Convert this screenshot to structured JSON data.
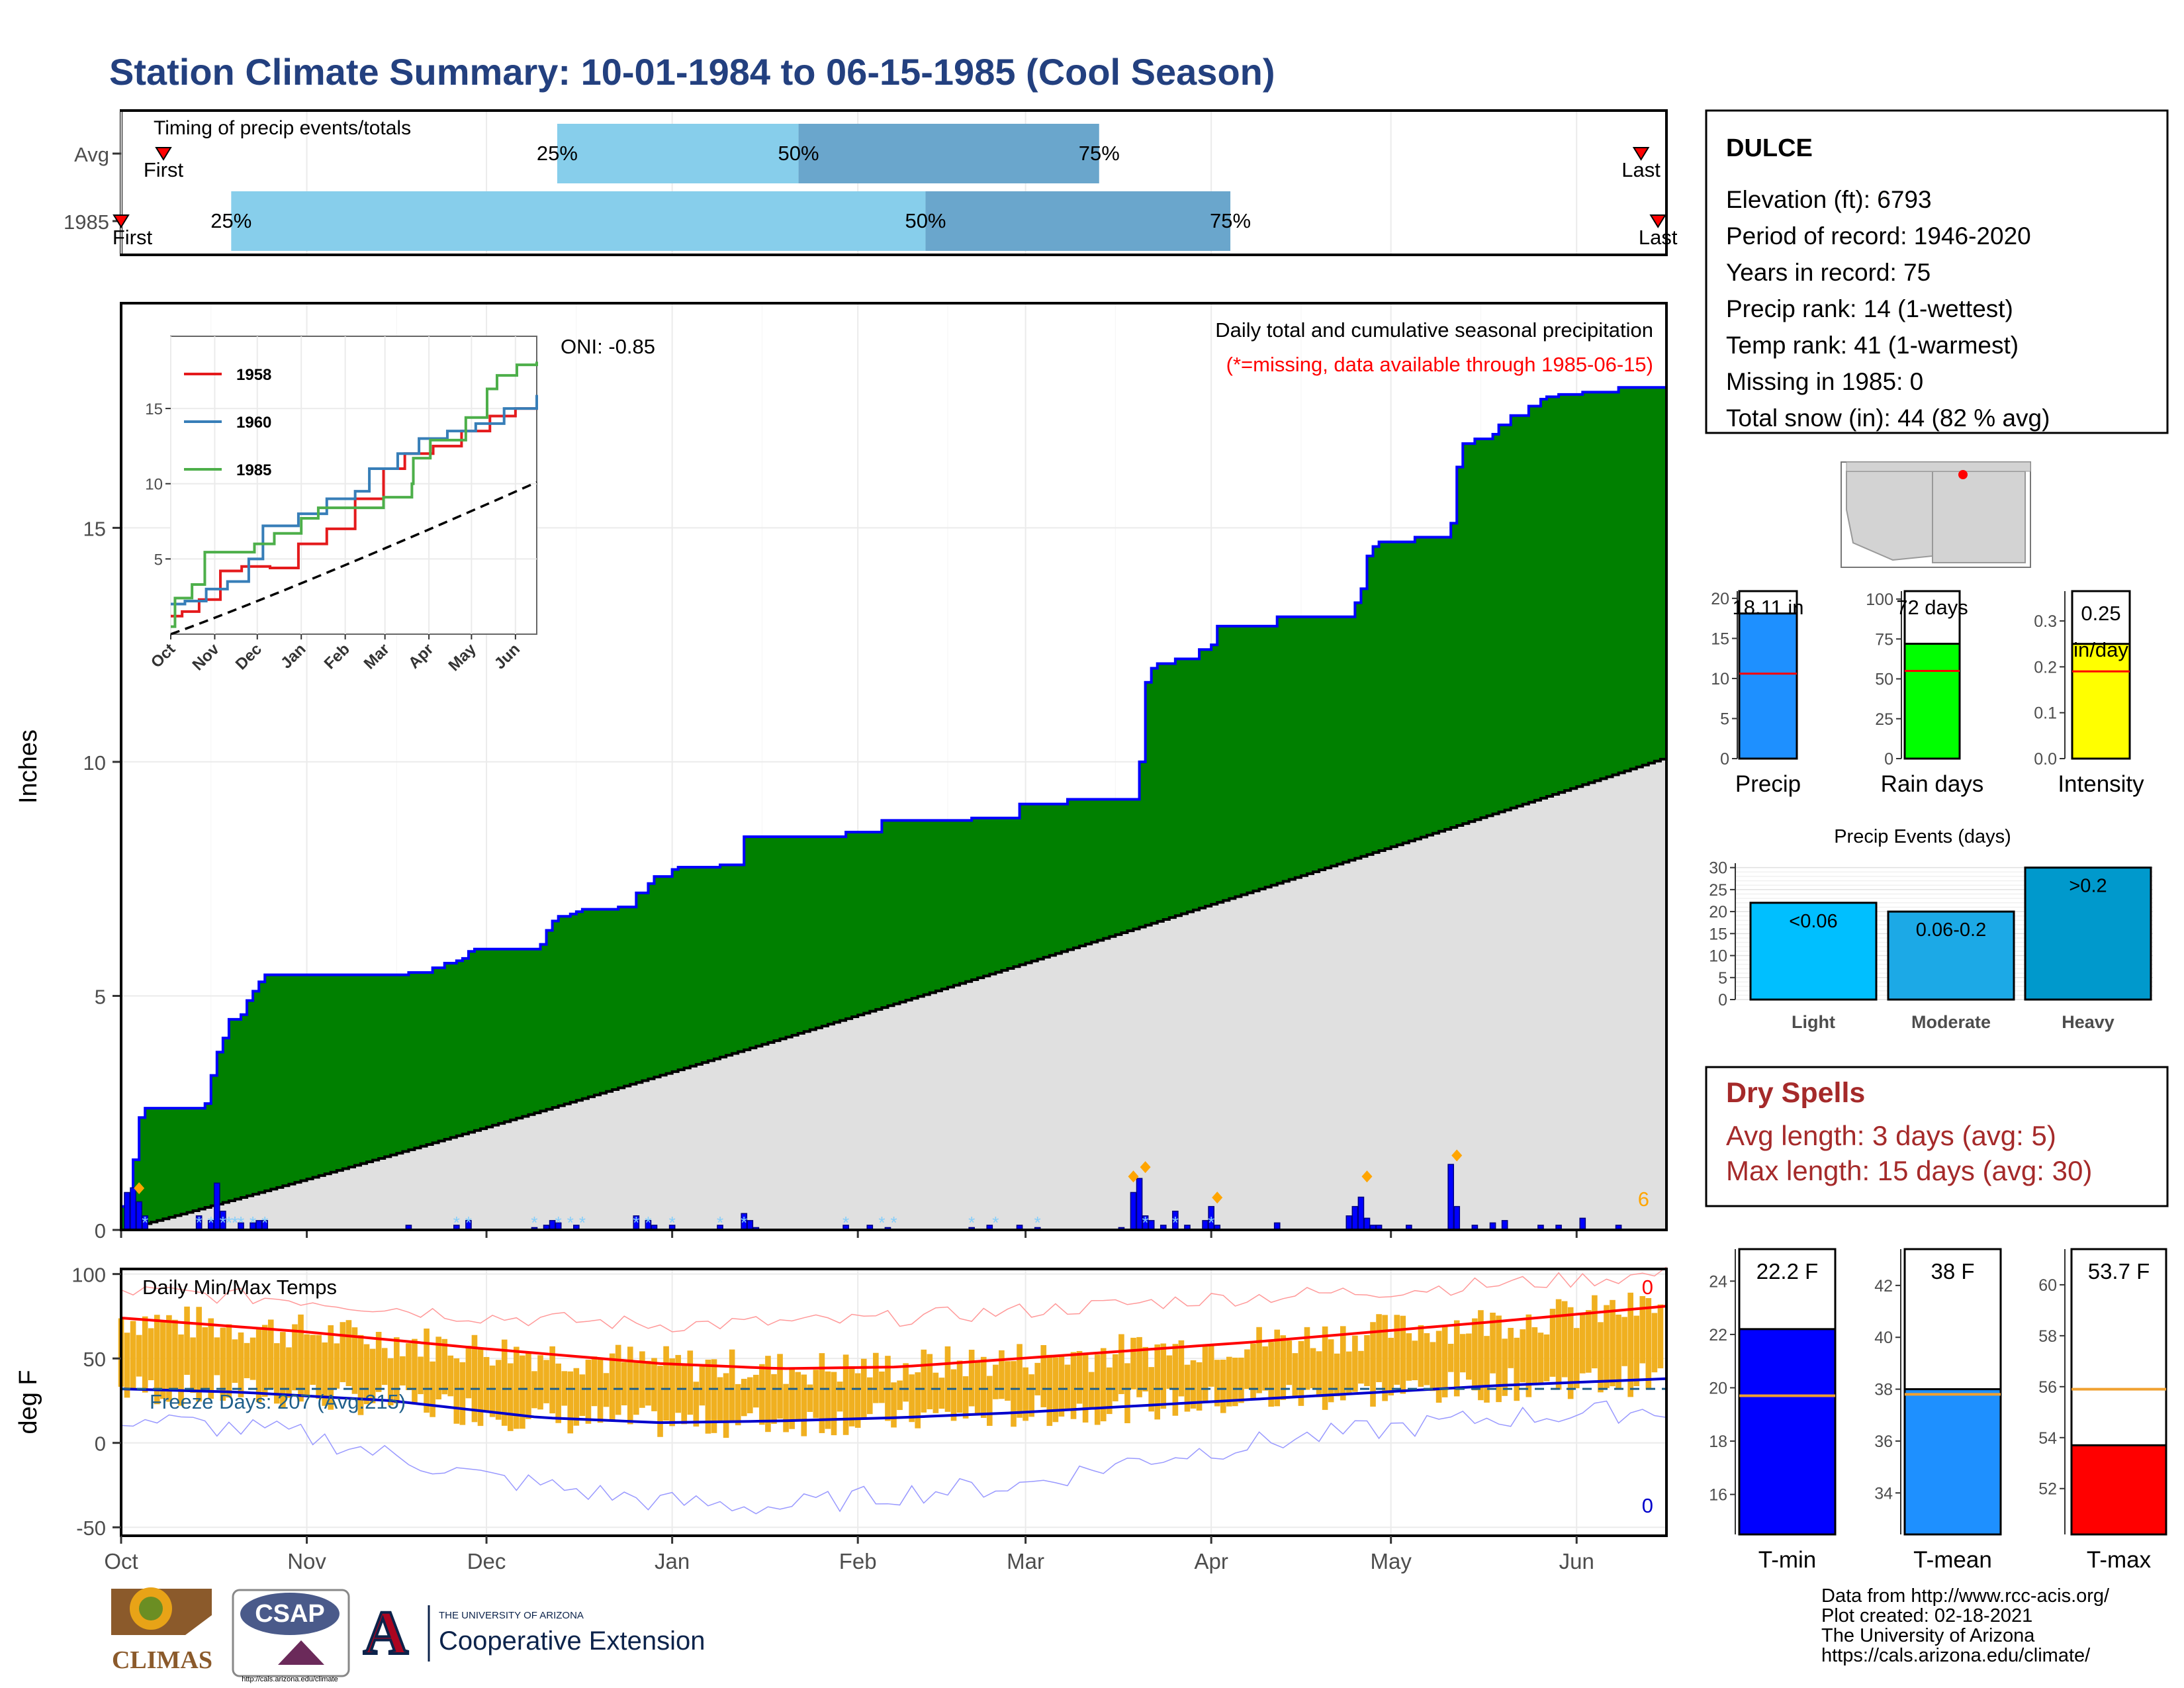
{
  "title": "Station Climate Summary: 10-01-1984 to 06-15-1985 (Cool Season)",
  "colors": {
    "title": "#23407f",
    "precip_fill": "#008000",
    "precip_line": "#0000ff",
    "normal_fill": "#e0e0e0",
    "q_light": "#87ceeb",
    "q_dark": "#6aa6cc",
    "line_1958": "#e41a1c",
    "line_1960": "#377eb8",
    "line_1985": "#4daf4a",
    "temp_bar": "#f0b020",
    "tmax_avg": "#ff0000",
    "tmin_avg": "#0000cc",
    "dry_spell": "#a52a2a",
    "freeze_line": "#1f5f8b"
  },
  "month_labels": [
    "Oct",
    "Nov",
    "Dec",
    "Jan",
    "Feb",
    "Mar",
    "Apr",
    "May",
    "Jun"
  ],
  "timing_panel": {
    "title": "Timing of precip events/totals",
    "rows": [
      {
        "label": "Avg",
        "q25_day": 103,
        "q50_day": 160,
        "q75_day": 231,
        "first_day": 10,
        "last_day": 359,
        "first_label": "First",
        "last_label": "Last",
        "p25": "25%",
        "p50": "50%",
        "p75": "75%"
      },
      {
        "label": "1985",
        "q25_day": 26,
        "q50_day": 190,
        "q75_day": 262,
        "first_day": 0,
        "last_day": 363,
        "first_label": "First",
        "last_label": "Last",
        "p25": "25%",
        "p50": "50%",
        "p75": "75%"
      }
    ]
  },
  "station_info": {
    "name": "DULCE",
    "lines": [
      "Elevation (ft): 6793",
      "Period of record: 1946-2020",
      "Years in record: 75",
      "Precip rank: 14 (1-wettest)",
      "Temp rank: 41 (1-warmest)",
      "Missing in 1985: 0",
      "Total snow (in): 44 (82 % avg)"
    ]
  },
  "map_icon": "southwest-us-locator-map",
  "bar_small_panels": [
    {
      "label": "Precip",
      "value": 18.11,
      "value_label": "18.11 in",
      "avg": 10.6,
      "ymax": 20.9,
      "ticks": [
        0,
        5,
        10,
        15,
        20
      ],
      "color": "#1e90ff"
    },
    {
      "label": "Rain days",
      "value": 72,
      "value_label": "72 days",
      "avg": 55,
      "ymax": 105,
      "ticks": [
        0,
        25,
        50,
        75,
        100
      ],
      "color": "#00ff00"
    },
    {
      "label": "Intensity",
      "value": 0.25,
      "value_label": "0.25",
      "value_label2": "in/day",
      "avg": 0.19,
      "ymax": 0.365,
      "ticks": [
        "0.0",
        "0.1",
        "0.2",
        "0.3"
      ],
      "color": "#ffff00"
    }
  ],
  "events_panel": {
    "title": "Precip Events (days)",
    "categories": [
      "Light",
      "Moderate",
      "Heavy"
    ],
    "values": [
      22,
      20,
      30
    ],
    "bar_labels": [
      "<0.06",
      "0.06-0.2",
      ">0.2"
    ],
    "colors": [
      "#00bfff",
      "#1ca9e6",
      "#0099cc"
    ],
    "ticks": [
      0,
      5,
      10,
      15,
      20,
      25,
      30
    ]
  },
  "dry_spells": {
    "title": "Dry Spells",
    "avg_line": "Avg length: 3 days (avg: 5)",
    "max_line": "Max length: 15 days (avg: 30)"
  },
  "temp_small_panels": [
    {
      "label": "T-min",
      "value": 22.2,
      "value_label": "22.2 F",
      "avg": 19.7,
      "ymin": 14.5,
      "ymax": 25.2,
      "ticks": [
        16,
        18,
        20,
        22,
        24
      ],
      "color": "#0000ff"
    },
    {
      "label": "T-mean",
      "value": 38.0,
      "value_label": "38 F",
      "avg": 37.8,
      "ymin": 32.4,
      "ymax": 43.4,
      "ticks": [
        34,
        36,
        38,
        40,
        42
      ],
      "color": "#1e90ff"
    },
    {
      "label": "T-max",
      "value": 53.7,
      "value_label": "53.7 F",
      "avg": 55.9,
      "ymin": 50.2,
      "ymax": 61.4,
      "ticks": [
        52,
        54,
        56,
        58,
        60
      ],
      "color": "#ff0000"
    }
  ],
  "chart_data": [
    {
      "type": "area",
      "name": "main-precip",
      "ylabel": "Inches",
      "note1": "Daily total and cumulative seasonal precipitation",
      "note2": "(*=missing, data available through 1985-06-15)",
      "oni": "ONI: -0.85",
      "corner_count": "6",
      "ylim": [
        0,
        19.8
      ],
      "yticks": [
        0,
        5,
        10,
        15
      ],
      "month_start_days": [
        0,
        31,
        61,
        92,
        123,
        151,
        182,
        212,
        243
      ],
      "days_total": 258,
      "cumulative_1985": [
        [
          0,
          0.5
        ],
        [
          2,
          1.5
        ],
        [
          3,
          2.4
        ],
        [
          4,
          2.6
        ],
        [
          14,
          2.7
        ],
        [
          15,
          3.3
        ],
        [
          16,
          3.8
        ],
        [
          17,
          4.1
        ],
        [
          18,
          4.5
        ],
        [
          20,
          4.6
        ],
        [
          21,
          4.9
        ],
        [
          22,
          5.1
        ],
        [
          23,
          5.3
        ],
        [
          24,
          5.45
        ],
        [
          48,
          5.5
        ],
        [
          52,
          5.6
        ],
        [
          54,
          5.7
        ],
        [
          56,
          5.75
        ],
        [
          57,
          5.8
        ],
        [
          58,
          5.95
        ],
        [
          59,
          6.0
        ],
        [
          69,
          6.0
        ],
        [
          70,
          6.1
        ],
        [
          71,
          6.4
        ],
        [
          72,
          6.6
        ],
        [
          73,
          6.7
        ],
        [
          75,
          6.75
        ],
        [
          76,
          6.8
        ],
        [
          77,
          6.85
        ],
        [
          83,
          6.9
        ],
        [
          86,
          7.2
        ],
        [
          88,
          7.4
        ],
        [
          89,
          7.55
        ],
        [
          92,
          7.7
        ],
        [
          93,
          7.75
        ],
        [
          100,
          7.8
        ],
        [
          104,
          8.4
        ],
        [
          106,
          8.4
        ],
        [
          107,
          8.4
        ],
        [
          121,
          8.5
        ],
        [
          127,
          8.75
        ],
        [
          129,
          8.75
        ],
        [
          142,
          8.8
        ],
        [
          146,
          8.8
        ],
        [
          150,
          9.1
        ],
        [
          153,
          9.1
        ],
        [
          158,
          9.2
        ],
        [
          167,
          9.2
        ],
        [
          170,
          10.0
        ],
        [
          171,
          11.7
        ],
        [
          172,
          12.0
        ],
        [
          173,
          12.1
        ],
        [
          174,
          12.1
        ],
        [
          176,
          12.2
        ],
        [
          180,
          12.4
        ],
        [
          182,
          12.5
        ],
        [
          183,
          12.9
        ],
        [
          192,
          12.9
        ],
        [
          193,
          13.1
        ],
        [
          205,
          13.1
        ],
        [
          206,
          13.4
        ],
        [
          207,
          13.7
        ],
        [
          208,
          14.4
        ],
        [
          209,
          14.6
        ],
        [
          210,
          14.7
        ],
        [
          216,
          14.8
        ],
        [
          222,
          15.1
        ],
        [
          223,
          16.3
        ],
        [
          224,
          16.8
        ],
        [
          226,
          16.9
        ],
        [
          229,
          17.0
        ],
        [
          230,
          17.2
        ],
        [
          232,
          17.4
        ],
        [
          235,
          17.6
        ],
        [
          237,
          17.75
        ],
        [
          238,
          17.8
        ],
        [
          240,
          17.85
        ],
        [
          244,
          17.9
        ],
        [
          250,
          18.0
        ],
        [
          258,
          18.11
        ]
      ],
      "normal_end": 10.1,
      "daily_bars": [
        [
          1,
          0.8
        ],
        [
          2,
          0.9
        ],
        [
          3,
          0.6
        ],
        [
          4,
          0.3
        ],
        [
          13,
          0.3
        ],
        [
          15,
          0.2
        ],
        [
          16,
          1.0
        ],
        [
          17,
          0.4
        ],
        [
          20,
          0.15
        ],
        [
          22,
          0.15
        ],
        [
          23,
          0.2
        ],
        [
          24,
          0.2
        ],
        [
          48,
          0.1
        ],
        [
          56,
          0.1
        ],
        [
          58,
          0.2
        ],
        [
          69,
          0.05
        ],
        [
          71,
          0.1
        ],
        [
          72,
          0.2
        ],
        [
          73,
          0.15
        ],
        [
          76,
          0.1
        ],
        [
          86,
          0.3
        ],
        [
          88,
          0.2
        ],
        [
          89,
          0.1
        ],
        [
          92,
          0.1
        ],
        [
          100,
          0.1
        ],
        [
          104,
          0.35
        ],
        [
          105,
          0.2
        ],
        [
          106,
          0.05
        ],
        [
          121,
          0.1
        ],
        [
          125,
          0.1
        ],
        [
          128,
          0.05
        ],
        [
          142,
          0.05
        ],
        [
          145,
          0.1
        ],
        [
          150,
          0.1
        ],
        [
          153,
          0.05
        ],
        [
          167,
          0.05
        ],
        [
          169,
          0.8
        ],
        [
          170,
          1.1
        ],
        [
          171,
          0.3
        ],
        [
          172,
          0.2
        ],
        [
          174,
          0.1
        ],
        [
          176,
          0.4
        ],
        [
          178,
          0.1
        ],
        [
          181,
          0.2
        ],
        [
          182,
          0.5
        ],
        [
          183,
          0.1
        ],
        [
          193,
          0.15
        ],
        [
          205,
          0.3
        ],
        [
          206,
          0.5
        ],
        [
          207,
          0.7
        ],
        [
          208,
          0.25
        ],
        [
          209,
          0.1
        ],
        [
          210,
          0.1
        ],
        [
          215,
          0.1
        ],
        [
          222,
          1.4
        ],
        [
          223,
          0.5
        ],
        [
          226,
          0.1
        ],
        [
          229,
          0.15
        ],
        [
          231,
          0.2
        ],
        [
          237,
          0.1
        ],
        [
          240,
          0.1
        ],
        [
          244,
          0.25
        ],
        [
          250,
          0.1
        ]
      ],
      "snow_days": [
        4,
        13,
        15,
        17,
        18,
        19,
        20,
        22,
        24,
        56,
        58,
        69,
        73,
        75,
        77,
        86,
        88,
        92,
        100,
        104,
        121,
        127,
        129,
        142,
        146,
        153,
        171,
        176,
        182
      ],
      "event_markers": [
        [
          3,
          0.75
        ],
        [
          169,
          1.0
        ],
        [
          171,
          1.2
        ],
        [
          183,
          0.55
        ],
        [
          208,
          1.0
        ],
        [
          223,
          1.45
        ]
      ]
    },
    {
      "type": "line",
      "name": "inset-cumulative",
      "ylim": [
        0,
        19.8
      ],
      "yticks": [
        5,
        10,
        15
      ],
      "month_labels": [
        "Oct",
        "Nov",
        "Dec",
        "Jan",
        "Feb",
        "Mar",
        "Apr",
        "May",
        "Jun"
      ],
      "series": [
        {
          "name": "1958",
          "points": [
            [
              0,
              1.2
            ],
            [
              8,
              1.5
            ],
            [
              20,
              2.3
            ],
            [
              35,
              4.2
            ],
            [
              50,
              4.5
            ],
            [
              70,
              4.4
            ],
            [
              90,
              6.0
            ],
            [
              110,
              7.0
            ],
            [
              130,
              9.0
            ],
            [
              150,
              11.0
            ],
            [
              165,
              12.0
            ],
            [
              185,
              12.5
            ],
            [
              205,
              13.5
            ],
            [
              225,
              14.5
            ],
            [
              243,
              15.0
            ],
            [
              258,
              15.5
            ]
          ]
        },
        {
          "name": "1960",
          "points": [
            [
              0,
              2.0
            ],
            [
              10,
              2.2
            ],
            [
              25,
              3.0
            ],
            [
              40,
              3.5
            ],
            [
              55,
              5.0
            ],
            [
              65,
              7.2
            ],
            [
              90,
              8.0
            ],
            [
              110,
              9.0
            ],
            [
              130,
              9.5
            ],
            [
              140,
              11.0
            ],
            [
              160,
              12.0
            ],
            [
              175,
              13.0
            ],
            [
              195,
              13.5
            ],
            [
              215,
              14.0
            ],
            [
              235,
              15.0
            ],
            [
              258,
              15.9
            ]
          ]
        },
        {
          "name": "1985",
          "points": [
            [
              0,
              0.5
            ],
            [
              3,
              2.4
            ],
            [
              15,
              3.3
            ],
            [
              24,
              5.45
            ],
            [
              59,
              6.0
            ],
            [
              73,
              6.7
            ],
            [
              92,
              7.7
            ],
            [
              104,
              8.4
            ],
            [
              150,
              9.1
            ],
            [
              170,
              10.0
            ],
            [
              171,
              11.7
            ],
            [
              183,
              12.9
            ],
            [
              208,
              14.4
            ],
            [
              223,
              16.3
            ],
            [
              230,
              17.2
            ],
            [
              244,
              17.9
            ],
            [
              258,
              18.11
            ]
          ]
        }
      ],
      "normal_end": 10.1
    },
    {
      "type": "line",
      "name": "daily-temps",
      "title": "Daily Min/Max Temps",
      "ylabel": "deg F",
      "freeze_label": "Freeze Days: 207 (Avg:215)",
      "freeze_line_value": 32,
      "ylim": [
        -55,
        103
      ],
      "yticks": [
        -50,
        0,
        50,
        100
      ],
      "month_start_days": [
        0,
        31,
        61,
        92,
        123,
        151,
        182,
        212,
        243
      ],
      "days_total": 258,
      "tmax_avg": [
        [
          0,
          74
        ],
        [
          30,
          66
        ],
        [
          60,
          56
        ],
        [
          90,
          47
        ],
        [
          110,
          44
        ],
        [
          130,
          45
        ],
        [
          150,
          50
        ],
        [
          170,
          55
        ],
        [
          190,
          60
        ],
        [
          210,
          66
        ],
        [
          230,
          72
        ],
        [
          258,
          81
        ]
      ],
      "tmin_avg": [
        [
          0,
          32
        ],
        [
          20,
          30
        ],
        [
          45,
          25
        ],
        [
          70,
          15
        ],
        [
          90,
          12
        ],
        [
          110,
          13
        ],
        [
          130,
          15
        ],
        [
          150,
          18
        ],
        [
          170,
          22
        ],
        [
          190,
          26
        ],
        [
          210,
          30
        ],
        [
          230,
          34
        ],
        [
          258,
          38
        ]
      ],
      "tmax_record": [
        [
          0,
          90
        ],
        [
          30,
          85
        ],
        [
          60,
          75
        ],
        [
          90,
          70
        ],
        [
          120,
          72
        ],
        [
          150,
          78
        ],
        [
          180,
          85
        ],
        [
          210,
          90
        ],
        [
          240,
          96
        ],
        [
          258,
          100
        ]
      ],
      "tmin_record": [
        [
          0,
          15
        ],
        [
          30,
          5
        ],
        [
          60,
          -20
        ],
        [
          90,
          -35
        ],
        [
          110,
          -38
        ],
        [
          130,
          -30
        ],
        [
          150,
          -25
        ],
        [
          170,
          -10
        ],
        [
          190,
          0
        ],
        [
          210,
          8
        ],
        [
          230,
          15
        ],
        [
          258,
          20
        ]
      ],
      "count_top": "0",
      "count_bottom": "0"
    }
  ],
  "credits": {
    "line1": "Data from http://www.rcc-acis.org/",
    "line2": "Plot created: 02-18-2021",
    "line3": "The University of Arizona",
    "line4": "https://cals.arizona.edu/climate/"
  },
  "logos": {
    "climas": "CLIMAS",
    "csap": "CSAP",
    "csap_url": "http://cals.arizona.edu/climate",
    "ua_letter": "A",
    "ua_small": "THE UNIVERSITY OF ARIZONA",
    "ua_big": "Cooperative Extension"
  }
}
